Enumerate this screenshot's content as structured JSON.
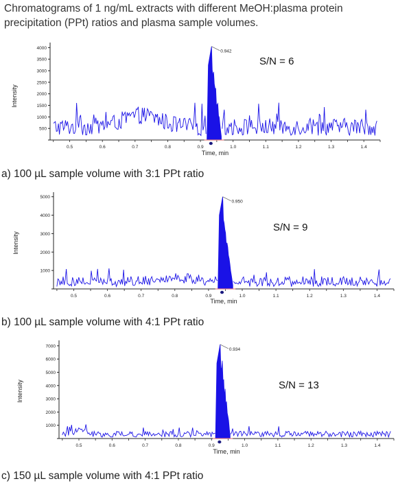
{
  "title": "Chromatograms of 1 ng/mL extracts with different MeOH:plasma protein precipitation (PPt) ratios and plasma sample volumes.",
  "colors": {
    "trace": "#1a12e6",
    "axis": "#222222",
    "baseline": "#e08080",
    "marker": "#1a1a80"
  },
  "chart_data": [
    {
      "type": "line",
      "caption": "a) 100 µL sample volume with 3:1 PPt ratio",
      "xlabel": "Time, min",
      "ylabel": "Intensity",
      "annotation": "S/N = 6",
      "peak_label": "0.942",
      "xlim": [
        0.44,
        1.45
      ],
      "ylim": [
        0,
        4100
      ],
      "xticks": [
        "0.5",
        "0.6",
        "0.7",
        "0.8",
        "0.9",
        "1.0",
        "1.1",
        "1.2",
        "1.3",
        "1.4"
      ],
      "yticks": [
        "500",
        "1000",
        "1500",
        "2000",
        "2500",
        "3000",
        "3500",
        "4000"
      ],
      "peak": {
        "x": 0.942,
        "y": 4050
      },
      "noise_level": 550,
      "noise_amplitude": 750,
      "hump": {
        "center": 0.72,
        "height": 500,
        "width": 0.08
      }
    },
    {
      "type": "line",
      "caption": "b) 100 µL sample volume with 4:1 PPt ratio",
      "xlabel": "Time, min",
      "ylabel": "Intensity",
      "annotation": "S/N = 9",
      "peak_label": "0.950",
      "xlim": [
        0.44,
        1.45
      ],
      "ylim": [
        0,
        5100
      ],
      "xticks": [
        "0.5",
        "0.6",
        "0.7",
        "0.8",
        "0.9",
        "1.0",
        "1.1",
        "1.2",
        "1.3",
        "1.4"
      ],
      "yticks": [
        "1000",
        "2000",
        "3000",
        "4000",
        "5000"
      ],
      "peak": {
        "x": 0.95,
        "y": 5000
      },
      "noise_level": 350,
      "noise_amplitude": 550,
      "hump": {
        "center": 0.8,
        "height": 200,
        "width": 0.08
      }
    },
    {
      "type": "line",
      "caption": "c) 150 µL sample volume with 4:1 PPt ratio",
      "xlabel": "Time, min",
      "ylabel": "Intensity",
      "annotation": "S/N = 13",
      "peak_label": "0.934",
      "xlim": [
        0.44,
        1.45
      ],
      "ylim": [
        0,
        7200
      ],
      "xticks": [
        "0.5",
        "0.6",
        "0.7",
        "0.8",
        "0.9",
        "1.0",
        "1.1",
        "1.2",
        "1.3",
        "1.4"
      ],
      "yticks": [
        "1000",
        "2000",
        "3000",
        "4000",
        "5000",
        "6000",
        "7000"
      ],
      "peak": {
        "x": 0.934,
        "y": 7100
      },
      "noise_level": 300,
      "noise_amplitude": 450,
      "hump": {
        "center": 0.5,
        "height": 250,
        "width": 0.03
      }
    }
  ]
}
